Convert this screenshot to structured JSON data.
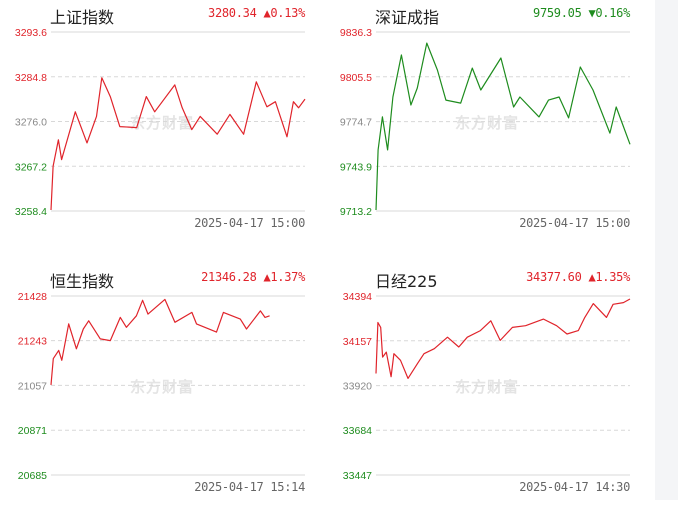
{
  "colors": {
    "up": "#e0242b",
    "down": "#1e8c1e",
    "flat": "#888888",
    "grid": "#d8d8d8"
  },
  "watermark": "东方财富",
  "chart_data": [
    {
      "type": "line",
      "key": "sh",
      "title": "上证指数",
      "last": "3280.34",
      "arrow": "▲",
      "change_pct": "0.13%",
      "direction": "up",
      "timestamp": "2025-04-17 15:00",
      "yticks": [
        "3293.6",
        "3284.8",
        "3276.0",
        "3267.2",
        "3258.4"
      ],
      "ylim": [
        3258.4,
        3293.6
      ],
      "prev_close": 3276.0,
      "grid": true,
      "x": [
        "09:30",
        "09:32",
        "09:37",
        "09:40",
        "09:53",
        "10:04",
        "10:13",
        "10:18",
        "10:26",
        "10:35",
        "10:51",
        "11:00",
        "11:08",
        "11:27",
        "13:04",
        "13:13",
        "13:21",
        "13:37",
        "13:49",
        "14:02",
        "14:14",
        "14:24",
        "14:32",
        "14:43",
        "14:49",
        "14:54",
        "15:00"
      ],
      "values": [
        3258.6,
        3267.2,
        3272.4,
        3268.5,
        3277.9,
        3271.8,
        3277.0,
        3284.6,
        3280.9,
        3275.0,
        3274.8,
        3280.9,
        3277.9,
        3283.2,
        3278.7,
        3274.4,
        3277.0,
        3273.5,
        3277.4,
        3273.5,
        3283.8,
        3278.9,
        3279.9,
        3273.0,
        3279.9,
        3278.7,
        3280.4
      ]
    },
    {
      "type": "line",
      "key": "sz",
      "title": "深证成指",
      "last": "9759.05",
      "arrow": "▼",
      "change_pct": "0.16%",
      "direction": "down",
      "timestamp": "2025-04-17 15:00",
      "yticks": [
        "9836.3",
        "9805.5",
        "9774.7",
        "9743.9",
        "9713.2"
      ],
      "ylim": [
        9713.2,
        9836.3
      ],
      "prev_close": 9774.7,
      "grid": true,
      "x": [
        "09:30",
        "09:32",
        "09:36",
        "09:41",
        "09:46",
        "09:54",
        "10:03",
        "10:09",
        "10:18",
        "10:28",
        "10:36",
        "10:50",
        "11:01",
        "11:09",
        "11:28",
        "13:10",
        "13:16",
        "13:34",
        "13:43",
        "13:53",
        "14:02",
        "14:13",
        "14:25",
        "14:41",
        "14:47",
        "14:54",
        "15:00"
      ],
      "values": [
        9713.9,
        9755.2,
        9777.9,
        9755.2,
        9791.6,
        9820.5,
        9786.1,
        9797.8,
        9828.7,
        9810.2,
        9789.5,
        9787.4,
        9811.5,
        9796.4,
        9818.4,
        9784.7,
        9791.6,
        9777.9,
        9789.5,
        9791.6,
        9777.2,
        9812.2,
        9796.4,
        9766.8,
        9784.7,
        9771.0,
        9759.1
      ]
    },
    {
      "type": "line",
      "key": "hsi",
      "title": "恒生指数",
      "last": "21346.28",
      "arrow": "▲",
      "change_pct": "1.37%",
      "direction": "up",
      "timestamp": "2025-04-17 15:14",
      "yticks": [
        "21428",
        "21243",
        "21057",
        "20871",
        "20685"
      ],
      "ylim": [
        20685,
        21428
      ],
      "prev_close": 21057,
      "grid": true,
      "x": [
        "09:30",
        "09:33",
        "09:40",
        "09:44",
        "09:53",
        "10:03",
        "10:12",
        "10:19",
        "10:34",
        "10:47",
        "11:00",
        "11:08",
        "11:21",
        "11:29",
        "11:36",
        "11:58",
        "13:11",
        "13:33",
        "13:39",
        "14:05",
        "14:14",
        "14:36",
        "14:44",
        "15:02",
        "15:08",
        "15:14"
      ],
      "values": [
        21059,
        21168,
        21202,
        21161,
        21312,
        21209,
        21291,
        21325,
        21250,
        21243,
        21339,
        21298,
        21346,
        21410,
        21353,
        21414,
        21319,
        21360,
        21312,
        21278,
        21360,
        21332,
        21291,
        21366,
        21339,
        21346
      ]
    },
    {
      "type": "line",
      "key": "n225",
      "title": "日经225",
      "last": "34377.60",
      "arrow": "▲",
      "change_pct": "1.35%",
      "direction": "up",
      "timestamp": "2025-04-17 14:30",
      "yticks": [
        "34394",
        "34157",
        "33920",
        "33684",
        "33447"
      ],
      "ylim": [
        33447,
        34394
      ],
      "prev_close": 33920,
      "grid": true,
      "x": [
        "09:00",
        "09:02",
        "09:05",
        "09:07",
        "09:11",
        "09:16",
        "09:19",
        "09:26",
        "09:34",
        "09:44",
        "09:51",
        "10:02",
        "10:16",
        "10:28",
        "10:37",
        "10:51",
        "11:02",
        "11:12",
        "11:25",
        "12:39",
        "12:58",
        "13:12",
        "13:23",
        "13:35",
        "13:42",
        "13:51",
        "14:05",
        "14:12",
        "14:23",
        "14:30"
      ],
      "values": [
        33984,
        34254,
        34228,
        34071,
        34097,
        33967,
        34089,
        34054,
        33958,
        34036,
        34089,
        34115,
        34176,
        34124,
        34176,
        34211,
        34263,
        34159,
        34228,
        34237,
        34272,
        34237,
        34193,
        34211,
        34281,
        34354,
        34281,
        34350,
        34359,
        34378
      ]
    }
  ]
}
